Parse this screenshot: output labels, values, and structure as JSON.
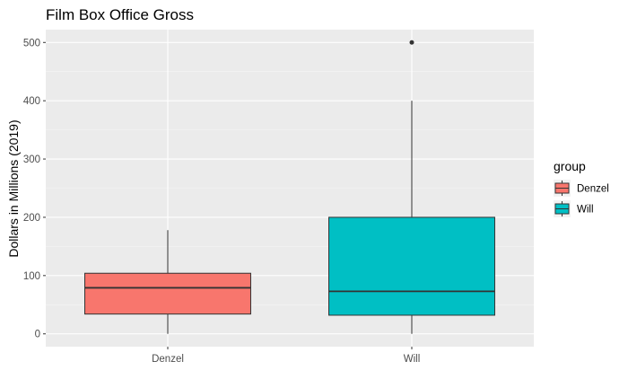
{
  "chart_data": {
    "type": "boxplot",
    "title": "Film Box Office Gross",
    "xlabel": "",
    "ylabel": "Dollars in Millions (2019)",
    "categories": [
      "Denzel",
      "Will"
    ],
    "yticks": [
      0,
      100,
      200,
      300,
      400,
      500
    ],
    "ylim": [
      -22,
      522
    ],
    "grid": true,
    "legend": {
      "title": "group",
      "position": "right",
      "entries": [
        "Denzel",
        "Will"
      ]
    },
    "boxes": [
      {
        "category": "Denzel",
        "min": 0,
        "q1": 34,
        "median": 79,
        "q3": 104,
        "max": 178,
        "outliers": [],
        "color": "#F8766D"
      },
      {
        "category": "Will",
        "min": 0,
        "q1": 32,
        "median": 73,
        "q3": 200,
        "max": 400,
        "outliers": [
          500
        ],
        "color": "#00BFC4"
      }
    ],
    "colors": {
      "panel": "#EBEBEB",
      "grid_major": "#FFFFFF",
      "grid_minor": "#F5F5F5",
      "box_line": "#333333"
    }
  }
}
